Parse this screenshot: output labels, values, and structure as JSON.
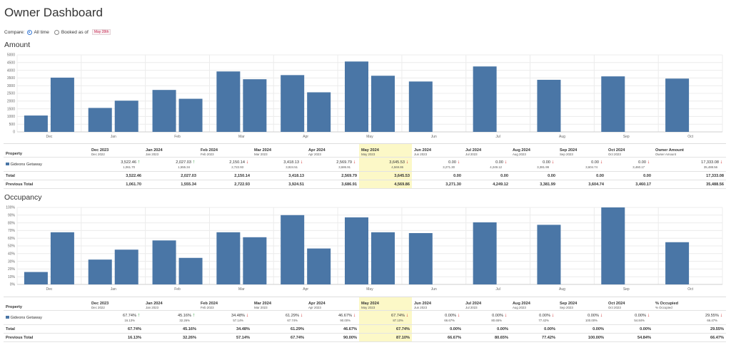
{
  "page": {
    "title": "Owner Dashboard",
    "compare_label": "Compare:",
    "opt_all_time": "All time",
    "opt_booked_as_of": "Booked as of",
    "booked_date": "May 28th"
  },
  "colors": {
    "bar": "#4a76a6",
    "highlight": "#fcf8c7",
    "up": "#2f9d3c",
    "down": "#d22b2b"
  },
  "amount": {
    "heading": "Amount",
    "chart_data": {
      "type": "bar",
      "title": "Amount",
      "categories": [
        "Dec",
        "Jan",
        "Feb",
        "Mar",
        "Apr",
        "May",
        "Jun",
        "Jul",
        "Aug",
        "Sep",
        "Oct"
      ],
      "series": [
        {
          "name": "Previous",
          "values": [
            1061.7,
            1555.34,
            2722.93,
            3924.51,
            3686.91,
            4569.86,
            3271.3,
            4249.12,
            3381.99,
            3604.74,
            3460.17
          ]
        },
        {
          "name": "Current",
          "values": [
            3522.46,
            2027.03,
            2150.14,
            3418.13,
            2569.79,
            3645.53,
            0,
            0,
            0,
            0,
            0
          ]
        }
      ],
      "ylim": [
        0,
        5000
      ],
      "yticks": [
        "0",
        "500",
        "1000",
        "1500",
        "2000",
        "2500",
        "3000",
        "3500",
        "4000",
        "4500",
        "5000"
      ],
      "ytick_values": [
        0,
        500,
        1000,
        1500,
        2000,
        2500,
        3000,
        3500,
        4000,
        4500,
        5000
      ]
    },
    "table": {
      "property_header": "Property",
      "columns": [
        {
          "month": "Dec 2023",
          "sub": "Dec 2022"
        },
        {
          "month": "Jan 2024",
          "sub": "Jan 2023"
        },
        {
          "month": "Feb 2024",
          "sub": "Feb 2023"
        },
        {
          "month": "Mar 2024",
          "sub": "Mar 2023"
        },
        {
          "month": "Apr 2024",
          "sub": "Apr 2023"
        },
        {
          "month": "May 2024",
          "sub": "May 2023"
        },
        {
          "month": "Jun 2024",
          "sub": "Jun 2023"
        },
        {
          "month": "Jul 2024",
          "sub": "Jul 2023"
        },
        {
          "month": "Aug 2024",
          "sub": "Aug 2023"
        },
        {
          "month": "Sep 2024",
          "sub": "Sep 2023"
        },
        {
          "month": "Oct 2024",
          "sub": "Oct 2023"
        },
        {
          "month": "Owner Amount",
          "sub": "Owner Amount"
        }
      ],
      "rows": [
        {
          "property": "Gideons Getaway",
          "cells": [
            {
              "cur": "3,522.46",
              "prev": "1,061.70",
              "dir": "up"
            },
            {
              "cur": "2,027.03",
              "prev": "1,555.34",
              "dir": "up"
            },
            {
              "cur": "2,150.14",
              "prev": "2,722.93",
              "dir": "down"
            },
            {
              "cur": "3,418.13",
              "prev": "3,924.51",
              "dir": "down"
            },
            {
              "cur": "2,569.79",
              "prev": "3,686.91",
              "dir": "down"
            },
            {
              "cur": "3,645.53",
              "prev": "4,569.86",
              "dir": "down"
            },
            {
              "cur": "0.00",
              "prev": "3,271.30",
              "dir": "down"
            },
            {
              "cur": "0.00",
              "prev": "4,249.12",
              "dir": "down"
            },
            {
              "cur": "0.00",
              "prev": "3,381.99",
              "dir": "down"
            },
            {
              "cur": "0.00",
              "prev": "3,604.74",
              "dir": "down"
            },
            {
              "cur": "0.00",
              "prev": "3,460.17",
              "dir": "down"
            },
            {
              "cur": "17,333.08",
              "prev": "35,488.56",
              "dir": "down"
            }
          ]
        }
      ],
      "total_label": "Total",
      "total": [
        "3,522.46",
        "2,027.03",
        "2,150.14",
        "3,418.13",
        "2,569.79",
        "3,645.53",
        "0.00",
        "0.00",
        "0.00",
        "0.00",
        "0.00",
        "17,333.08"
      ],
      "prev_total_label": "Previous Total",
      "prev_total": [
        "1,061.70",
        "1,555.34",
        "2,722.93",
        "3,924.51",
        "3,686.91",
        "4,569.86",
        "3,271.30",
        "4,249.12",
        "3,381.99",
        "3,604.74",
        "3,460.17",
        "35,488.56"
      ]
    }
  },
  "occupancy": {
    "heading": "Occupancy",
    "chart_data": {
      "type": "bar",
      "title": "Occupancy",
      "categories": [
        "Dec",
        "Jan",
        "Feb",
        "Mar",
        "Apr",
        "May",
        "Jun",
        "Jul",
        "Aug",
        "Sep",
        "Oct"
      ],
      "series": [
        {
          "name": "Previous",
          "values": [
            16.13,
            32.26,
            57.14,
            67.74,
            90.0,
            87.1,
            66.67,
            80.65,
            77.42,
            100.0,
            54.84
          ]
        },
        {
          "name": "Current",
          "values": [
            67.74,
            45.16,
            34.48,
            61.29,
            46.67,
            67.74,
            0,
            0,
            0,
            0,
            0
          ]
        }
      ],
      "ylim": [
        0,
        100
      ],
      "yticks": [
        "0%",
        "10%",
        "20%",
        "30%",
        "40%",
        "50%",
        "60%",
        "70%",
        "80%",
        "90%",
        "100%"
      ],
      "ytick_values": [
        0,
        10,
        20,
        30,
        40,
        50,
        60,
        70,
        80,
        90,
        100
      ]
    },
    "table": {
      "property_header": "Property",
      "columns": [
        {
          "month": "Dec 2023",
          "sub": "Dec 2022"
        },
        {
          "month": "Jan 2024",
          "sub": "Jan 2023"
        },
        {
          "month": "Feb 2024",
          "sub": "Feb 2023"
        },
        {
          "month": "Mar 2024",
          "sub": "Mar 2023"
        },
        {
          "month": "Apr 2024",
          "sub": "Apr 2023"
        },
        {
          "month": "May 2024",
          "sub": "May 2023"
        },
        {
          "month": "Jun 2024",
          "sub": "Jun 2023"
        },
        {
          "month": "Jul 2024",
          "sub": "Jul 2023"
        },
        {
          "month": "Aug 2024",
          "sub": "Aug 2023"
        },
        {
          "month": "Sep 2024",
          "sub": "Sep 2023"
        },
        {
          "month": "Oct 2024",
          "sub": "Oct 2023"
        },
        {
          "month": "% Occupied",
          "sub": "% Occupied"
        }
      ],
      "rows": [
        {
          "property": "Gideons Getaway",
          "cells": [
            {
              "cur": "67.74%",
              "prev": "16.13%",
              "dir": "up"
            },
            {
              "cur": "45.16%",
              "prev": "32.26%",
              "dir": "up"
            },
            {
              "cur": "34.48%",
              "prev": "57.14%",
              "dir": "down"
            },
            {
              "cur": "61.29%",
              "prev": "67.74%",
              "dir": "down"
            },
            {
              "cur": "46.67%",
              "prev": "90.00%",
              "dir": "down"
            },
            {
              "cur": "67.74%",
              "prev": "87.10%",
              "dir": "down"
            },
            {
              "cur": "0.00%",
              "prev": "66.67%",
              "dir": "down"
            },
            {
              "cur": "0.00%",
              "prev": "80.65%",
              "dir": "down"
            },
            {
              "cur": "0.00%",
              "prev": "77.42%",
              "dir": "down"
            },
            {
              "cur": "0.00%",
              "prev": "100.00%",
              "dir": "down"
            },
            {
              "cur": "0.00%",
              "prev": "54.84%",
              "dir": "down"
            },
            {
              "cur": "29.55%",
              "prev": "66.47%",
              "dir": "down"
            }
          ]
        }
      ],
      "total_label": "Total",
      "total": [
        "67.74%",
        "45.16%",
        "34.48%",
        "61.29%",
        "46.67%",
        "67.74%",
        "0.00%",
        "0.00%",
        "0.00%",
        "0.00%",
        "0.00%",
        "29.55%"
      ],
      "prev_total_label": "Previous Total",
      "prev_total": [
        "16.13%",
        "32.26%",
        "57.14%",
        "67.74%",
        "90.00%",
        "87.10%",
        "66.67%",
        "80.65%",
        "77.42%",
        "100.00%",
        "54.84%",
        "66.47%"
      ]
    }
  }
}
